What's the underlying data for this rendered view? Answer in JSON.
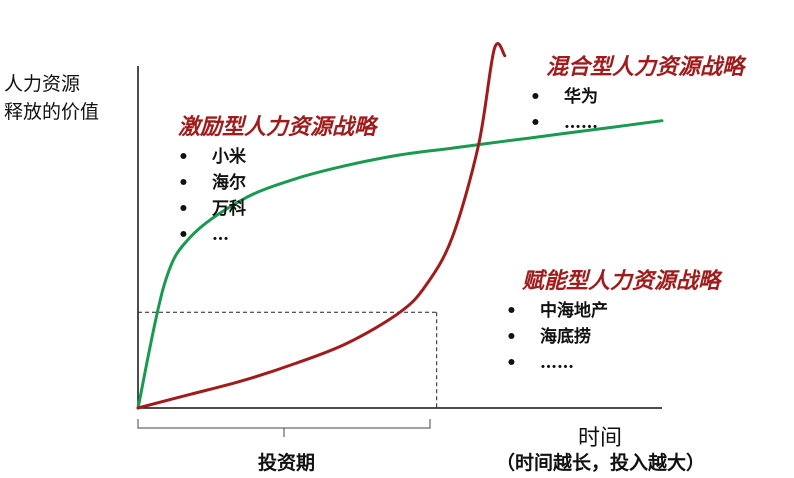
{
  "chart_data": {
    "type": "line",
    "ylabel": [
      "人力资源",
      "释放的价值"
    ],
    "xlabel": "时间",
    "series": [
      {
        "key": "incentive",
        "color": "#1a9a50",
        "x": [
          0,
          0.05,
          0.1,
          0.2,
          0.3,
          0.4,
          0.5,
          0.6,
          0.7,
          0.8,
          0.9,
          1.0
        ],
        "values": [
          0,
          0.36,
          0.5,
          0.61,
          0.67,
          0.71,
          0.74,
          0.76,
          0.78,
          0.8,
          0.82,
          0.84
        ]
      },
      {
        "key": "enabling",
        "color": "#a01c1c",
        "x": [
          0,
          0.1,
          0.2,
          0.3,
          0.4,
          0.5,
          0.55,
          0.6,
          0.65,
          0.68,
          0.7
        ],
        "values": [
          0,
          0.04,
          0.08,
          0.13,
          0.19,
          0.28,
          0.36,
          0.5,
          0.77,
          1.05,
          1.03
        ]
      }
    ],
    "reference": {
      "x": 0.57,
      "y": 0.28
    },
    "grid": false,
    "legend": "none"
  },
  "labels": {
    "period": "投资期",
    "note": "（时间越长，投入越大）"
  },
  "groups": {
    "incentive": {
      "title": "激励型人力资源战略",
      "items": [
        "小米",
        "海尔",
        "万科",
        "…"
      ]
    },
    "mixed": {
      "title": "混合型人力资源战略",
      "items": [
        "华为",
        "……"
      ]
    },
    "enabling": {
      "title": "赋能型人力资源战略",
      "items": [
        "中海地产",
        "海底捞",
        "……"
      ]
    }
  }
}
